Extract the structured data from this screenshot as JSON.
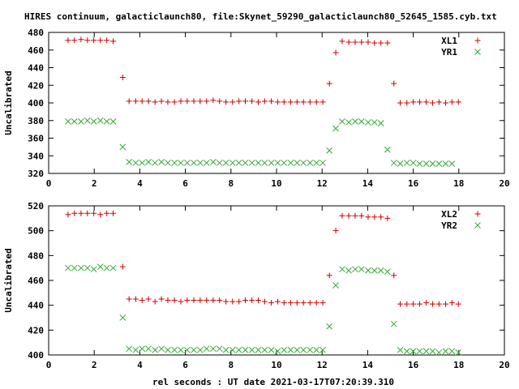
{
  "title": "HIRES continuum, galacticlaunch80, file:Skynet_59290_galacticlaunch80_52645_1585.cyb.txt",
  "xlabel": "rel seconds : UT date 2021-03-17T07:20:39.310",
  "colors": {
    "series_a": "#cc0000",
    "series_b": "#33aa33"
  },
  "chart_data": [
    {
      "type": "scatter",
      "ylabel": "Uncalibrated",
      "xlim": [
        0,
        20
      ],
      "ylim": [
        320,
        480
      ],
      "xticks": [
        0,
        2,
        4,
        6,
        8,
        10,
        12,
        14,
        16,
        18,
        20
      ],
      "yticks": [
        320,
        340,
        360,
        380,
        400,
        420,
        440,
        460,
        480
      ],
      "legend_position": "top-right",
      "x": [
        0.85,
        1.13,
        1.42,
        1.7,
        1.98,
        2.27,
        2.55,
        2.83,
        3.25,
        3.53,
        3.82,
        4.1,
        4.38,
        4.67,
        4.95,
        5.23,
        5.52,
        5.8,
        6.08,
        6.37,
        6.65,
        6.93,
        7.22,
        7.5,
        7.78,
        8.07,
        8.35,
        8.63,
        8.92,
        9.2,
        9.48,
        9.77,
        10.05,
        10.33,
        10.62,
        10.9,
        11.18,
        11.47,
        11.75,
        12.03,
        12.32,
        12.6,
        12.88,
        13.17,
        13.45,
        13.73,
        14.02,
        14.3,
        14.58,
        14.87,
        15.15,
        15.43,
        15.72,
        16.0,
        16.28,
        16.57,
        16.85,
        17.13,
        17.42,
        17.7,
        17.98,
        18.27,
        18.55,
        18.83
      ],
      "series": [
        {
          "name": "XL1",
          "marker": "plus",
          "values": [
            471,
            471,
            472,
            471,
            471,
            471,
            471,
            470,
            429,
            402,
            402,
            402,
            402,
            401,
            402,
            401,
            401,
            402,
            402,
            402,
            402,
            402,
            403,
            402,
            401,
            401,
            402,
            402,
            402,
            401,
            402,
            402,
            401,
            401,
            401,
            401,
            401,
            401,
            401,
            401,
            422,
            457,
            470,
            469,
            469,
            469,
            469,
            468,
            468,
            468,
            422,
            400,
            400,
            401,
            401,
            401,
            400,
            401,
            400,
            401,
            401,
            null,
            null,
            null
          ]
        },
        {
          "name": "YR1",
          "marker": "cross",
          "values": [
            379,
            379,
            379,
            380,
            379,
            380,
            379,
            379,
            350,
            333,
            332,
            332,
            333,
            332,
            333,
            332,
            332,
            332,
            332,
            332,
            332,
            332,
            333,
            332,
            332,
            332,
            332,
            332,
            332,
            332,
            332,
            332,
            332,
            332,
            332,
            332,
            332,
            332,
            332,
            332,
            346,
            371,
            379,
            378,
            379,
            379,
            378,
            378,
            377,
            347,
            332,
            331,
            332,
            332,
            331,
            331,
            331,
            331,
            331,
            331,
            null,
            null,
            null,
            null
          ]
        }
      ]
    },
    {
      "type": "scatter",
      "ylabel": "Uncalibrated",
      "xlim": [
        0,
        20
      ],
      "ylim": [
        400,
        520
      ],
      "xticks": [
        0,
        2,
        4,
        6,
        8,
        10,
        12,
        14,
        16,
        18,
        20
      ],
      "yticks": [
        400,
        420,
        440,
        460,
        480,
        500,
        520
      ],
      "legend_position": "top-right",
      "x": [
        0.85,
        1.13,
        1.42,
        1.7,
        1.98,
        2.27,
        2.55,
        2.83,
        3.25,
        3.53,
        3.82,
        4.1,
        4.38,
        4.67,
        4.95,
        5.23,
        5.52,
        5.8,
        6.08,
        6.37,
        6.65,
        6.93,
        7.22,
        7.5,
        7.78,
        8.07,
        8.35,
        8.63,
        8.92,
        9.2,
        9.48,
        9.77,
        10.05,
        10.33,
        10.62,
        10.9,
        11.18,
        11.47,
        11.75,
        12.03,
        12.32,
        12.6,
        12.88,
        13.17,
        13.45,
        13.73,
        14.02,
        14.3,
        14.58,
        14.87,
        15.15,
        15.43,
        15.72,
        16.0,
        16.28,
        16.57,
        16.85,
        17.13,
        17.42,
        17.7,
        17.98,
        18.27,
        18.55,
        18.83
      ],
      "series": [
        {
          "name": "XL2",
          "marker": "plus",
          "values": [
            513,
            514,
            514,
            514,
            514,
            513,
            514,
            514,
            471,
            445,
            445,
            444,
            445,
            443,
            445,
            444,
            444,
            443,
            444,
            444,
            444,
            444,
            444,
            444,
            443,
            443,
            443,
            444,
            444,
            444,
            443,
            442,
            443,
            442,
            442,
            442,
            442,
            442,
            442,
            442,
            464,
            500,
            512,
            512,
            512,
            512,
            511,
            511,
            511,
            510,
            464,
            441,
            441,
            441,
            441,
            442,
            441,
            441,
            441,
            442,
            441,
            null,
            null,
            null
          ]
        },
        {
          "name": "YR2",
          "marker": "cross",
          "values": [
            470,
            470,
            470,
            470,
            469,
            471,
            470,
            470,
            430,
            405,
            404,
            405,
            405,
            404,
            405,
            404,
            404,
            404,
            404,
            404,
            404,
            405,
            405,
            405,
            404,
            404,
            404,
            404,
            404,
            404,
            404,
            404,
            403,
            404,
            404,
            404,
            404,
            404,
            404,
            404,
            423,
            456,
            469,
            468,
            469,
            469,
            468,
            468,
            468,
            467,
            425,
            404,
            403,
            403,
            403,
            403,
            403,
            402,
            403,
            403,
            402,
            null,
            null,
            null
          ]
        }
      ]
    }
  ]
}
